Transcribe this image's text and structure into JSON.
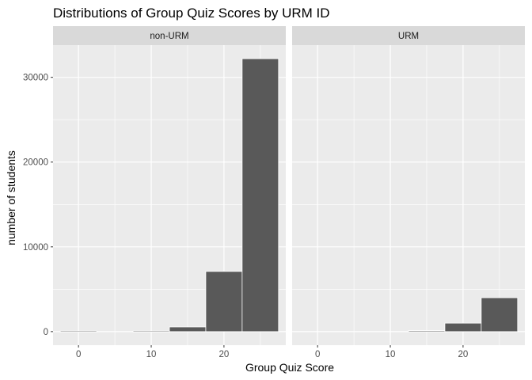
{
  "chart_data": {
    "type": "bar",
    "title": "Distributions of Group Quiz Scores by URM ID",
    "xlabel": "Group Quiz Score",
    "ylabel": "number of students",
    "xlim": [
      -3.5,
      28.5
    ],
    "ylim": [
      -1600,
      33800
    ],
    "x_ticks": [
      0,
      10,
      20
    ],
    "y_ticks": [
      0,
      10000,
      20000,
      30000
    ],
    "bin_width": 5,
    "bin_centers": [
      0,
      5,
      10,
      15,
      20,
      25
    ],
    "grid": true,
    "legend": "none",
    "panels": [
      {
        "name": "non-URM",
        "values": [
          60,
          0,
          60,
          550,
          7100,
          32200
        ]
      },
      {
        "name": "URM",
        "values": [
          0,
          0,
          0,
          120,
          1000,
          4000
        ]
      }
    ],
    "colors": {
      "bar_fill": "#595959",
      "bar_outline": "#ffffff",
      "panel_background": "#ebebeb",
      "strip_background": "#d9d9d9",
      "gridline": "#ffffff"
    }
  }
}
